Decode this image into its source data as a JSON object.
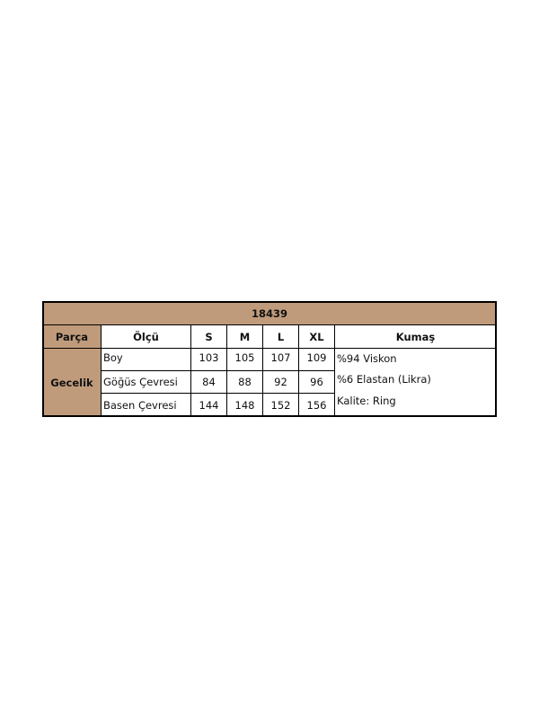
{
  "table": {
    "title": "18439",
    "headers": [
      "Parça",
      "Ölçü",
      "S",
      "M",
      "L",
      "XL",
      "Kumaş"
    ],
    "part": "Gecelik",
    "rows": [
      {
        "label": "Boy",
        "values": [
          "103",
          "105",
          "107",
          "109"
        ]
      },
      {
        "label": "Göğüs Çevresi",
        "values": [
          "84",
          "88",
          "92",
          "96"
        ]
      },
      {
        "label": "Basen Çevresi",
        "values": [
          "144",
          "148",
          "152",
          "156"
        ]
      }
    ],
    "fabric": [
      "%94 Viskon",
      "%6 Elastan (Likra)",
      "Kalite: Ring"
    ]
  },
  "colors": {
    "header_bg": "#c09b7b",
    "border": "#000000"
  }
}
